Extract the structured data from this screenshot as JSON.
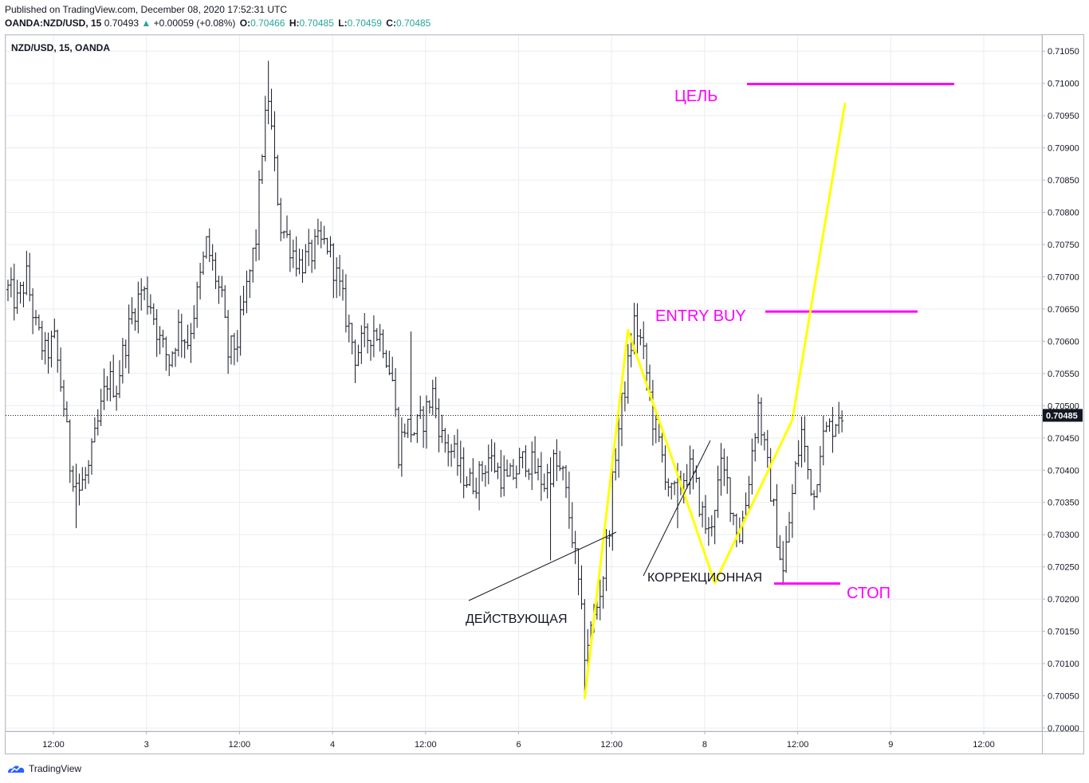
{
  "header": {
    "published": "Published on TradingView.com, December 08, 2020 17:52:31 UTC",
    "symbol": "OANDA:NZD/USD, 15",
    "last": "0.70493",
    "arrow": "▲",
    "change": "+0.00059 (+0.08%)",
    "o_label": "O:",
    "o_value": "0.70466",
    "h_label": "H:",
    "h_value": "0.70485",
    "l_label": "L:",
    "l_value": "0.70459",
    "c_label": "C:",
    "c_value": "0.70485"
  },
  "pane": {
    "legend": "NZD/USD, 15, OANDA",
    "last_price_label": "0.70485"
  },
  "footer": {
    "brand": "TradingView"
  },
  "colors": {
    "bullish": "#26a69a",
    "annotation_magenta": "#ff00ff",
    "annotation_yellow": "#ffff00",
    "bars": "#131722",
    "grid": "#e9ecf2"
  },
  "chart_data": {
    "type": "ohlc_bar",
    "symbol": "NZD/USD",
    "timeframe": "15",
    "source": "OANDA",
    "ylim": [
      0.69995,
      0.71075
    ],
    "y_ticks": [
      "0.71050",
      "0.71000",
      "0.70950",
      "0.70900",
      "0.70850",
      "0.70800",
      "0.70750",
      "0.70700",
      "0.70650",
      "0.70600",
      "0.70550",
      "0.70500",
      "0.70450",
      "0.70400",
      "0.70350",
      "0.70300",
      "0.70250",
      "0.70200",
      "0.70150",
      "0.70100",
      "0.70050",
      "0.70000"
    ],
    "x_ticks": [
      "12:00",
      "3",
      "12:00",
      "4",
      "12:00",
      "6",
      "12:00",
      "8",
      "12:00",
      "9",
      "12:00"
    ],
    "last_price": 0.70485,
    "close_path": [
      [
        0,
        0.7068
      ],
      [
        3,
        0.7066
      ],
      [
        6,
        0.707
      ],
      [
        9,
        0.7062
      ],
      [
        12,
        0.7058
      ],
      [
        15,
        0.706
      ],
      [
        18,
        0.705
      ],
      [
        20,
        0.7041
      ],
      [
        23,
        0.7037
      ],
      [
        26,
        0.704
      ],
      [
        29,
        0.7047
      ],
      [
        32,
        0.7054
      ],
      [
        35,
        0.7053
      ],
      [
        37,
        0.7058
      ],
      [
        40,
        0.7064
      ],
      [
        43,
        0.7068
      ],
      [
        46,
        0.7066
      ],
      [
        49,
        0.706
      ],
      [
        52,
        0.7057
      ],
      [
        55,
        0.7062
      ],
      [
        58,
        0.706
      ],
      [
        61,
        0.7067
      ],
      [
        64,
        0.7075
      ],
      [
        67,
        0.707
      ],
      [
        69,
        0.7066
      ],
      [
        71,
        0.7058
      ],
      [
        74,
        0.706
      ],
      [
        77,
        0.7068
      ],
      [
        80,
        0.7076
      ],
      [
        82,
        0.709
      ],
      [
        84,
        0.7098
      ],
      [
        86,
        0.7087
      ],
      [
        88,
        0.7078
      ],
      [
        91,
        0.7075
      ],
      [
        94,
        0.7072
      ],
      [
        97,
        0.7073
      ],
      [
        100,
        0.7075
      ],
      [
        103,
        0.7075
      ],
      [
        106,
        0.707
      ],
      [
        109,
        0.7064
      ],
      [
        112,
        0.7058
      ],
      [
        115,
        0.706
      ],
      [
        118,
        0.7062
      ],
      [
        121,
        0.706
      ],
      [
        124,
        0.7054
      ],
      [
        126,
        0.7043
      ],
      [
        128,
        0.7047
      ],
      [
        131,
        0.7046
      ],
      [
        134,
        0.7048
      ],
      [
        137,
        0.7052
      ],
      [
        140,
        0.7045
      ],
      [
        143,
        0.7043
      ],
      [
        146,
        0.704
      ],
      [
        149,
        0.7038
      ],
      [
        152,
        0.7039
      ],
      [
        155,
        0.7042
      ],
      [
        158,
        0.704
      ],
      [
        161,
        0.7038
      ],
      [
        164,
        0.704
      ],
      [
        167,
        0.7042
      ],
      [
        170,
        0.704
      ],
      [
        173,
        0.7038
      ],
      [
        176,
        0.7041
      ],
      [
        179,
        0.7039
      ],
      [
        182,
        0.703
      ],
      [
        184,
        0.7022
      ],
      [
        186,
        0.7012
      ],
      [
        188,
        0.7015
      ],
      [
        190,
        0.7019
      ],
      [
        192,
        0.7024
      ],
      [
        194,
        0.7032
      ],
      [
        196,
        0.7043
      ],
      [
        198,
        0.705
      ],
      [
        200,
        0.7056
      ],
      [
        202,
        0.7063
      ],
      [
        204,
        0.706
      ],
      [
        206,
        0.7055
      ],
      [
        208,
        0.7048
      ],
      [
        210,
        0.7044
      ],
      [
        212,
        0.704
      ],
      [
        214,
        0.7036
      ],
      [
        216,
        0.7037
      ],
      [
        218,
        0.7039
      ],
      [
        220,
        0.704
      ],
      [
        222,
        0.7037
      ],
      [
        224,
        0.7033
      ],
      [
        226,
        0.703
      ],
      [
        228,
        0.7035
      ],
      [
        230,
        0.704
      ],
      [
        232,
        0.7038
      ],
      [
        234,
        0.7033
      ],
      [
        236,
        0.703
      ],
      [
        238,
        0.7035
      ],
      [
        240,
        0.7043
      ],
      [
        242,
        0.705
      ],
      [
        244,
        0.7043
      ],
      [
        246,
        0.7037
      ],
      [
        248,
        0.703
      ],
      [
        250,
        0.7024
      ],
      [
        252,
        0.7032
      ],
      [
        254,
        0.704
      ],
      [
        256,
        0.7046
      ],
      [
        258,
        0.704
      ],
      [
        260,
        0.7036
      ],
      [
        262,
        0.7044
      ],
      [
        264,
        0.7046
      ],
      [
        266,
        0.7047
      ],
      [
        268,
        0.7049
      ]
    ],
    "annotations": [
      {
        "type": "text",
        "text": "ЦЕЛЬ",
        "color": "#ff00ff"
      },
      {
        "type": "text",
        "text": "ENTRY BUY",
        "color": "#ff00ff"
      },
      {
        "type": "text",
        "text": "СТОП",
        "color": "#ff00ff"
      },
      {
        "type": "text",
        "text": "КОРРЕКЦИОННАЯ",
        "color": "#131722"
      },
      {
        "type": "text",
        "text": "ДЕЙСТВУЮЩАЯ",
        "color": "#131722"
      },
      {
        "type": "hline",
        "name": "target",
        "price": 0.70999,
        "color": "#ff00ff"
      },
      {
        "type": "hline",
        "name": "entry",
        "price": 0.70646,
        "color": "#ff00ff"
      },
      {
        "type": "hline",
        "name": "stop",
        "price": 0.70224,
        "color": "#ff00ff"
      },
      {
        "type": "polyline",
        "name": "wave",
        "color": "#ffff00",
        "points": [
          [
            186,
            0.70045
          ],
          [
            200,
            0.70617
          ],
          [
            228,
            0.70225
          ],
          [
            253,
            0.70478
          ],
          [
            270,
            0.7097
          ]
        ]
      }
    ]
  }
}
